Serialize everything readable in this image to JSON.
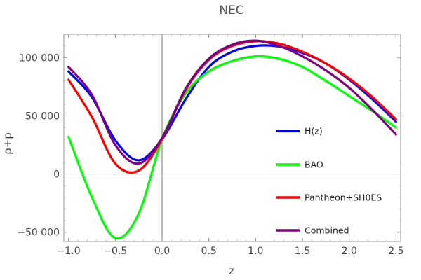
{
  "chart_data": {
    "type": "line",
    "title": "NEC",
    "xlabel": "z",
    "ylabel": "ρ+p",
    "xlim": [
      -1.05,
      2.55
    ],
    "ylim": [
      -58000,
      120000
    ],
    "xticks": [
      -1.0,
      -0.5,
      0.0,
      0.5,
      1.0,
      1.5,
      2.0,
      2.5
    ],
    "xtick_labels": [
      "−1.0",
      "−0.5",
      "0.0",
      "0.5",
      "1.0",
      "1.5",
      "2.0",
      "2.5"
    ],
    "yticks": [
      -50000,
      0,
      50000,
      100000
    ],
    "ytick_labels": [
      "−50 000",
      "0",
      "50 000",
      "100 000"
    ],
    "legend_position": "right",
    "series": [
      {
        "name": "H(z)",
        "color": "#0000ff",
        "x": [
          -1.0,
          -0.75,
          -0.5,
          -0.25,
          0.0,
          0.25,
          0.5,
          0.75,
          1.0,
          1.25,
          1.5,
          1.75,
          2.0,
          2.25,
          2.5
        ],
        "values": [
          88000,
          66000,
          29000,
          11800,
          30000,
          64000,
          92000,
          105000,
          110000,
          109500,
          104000,
          95000,
          81000,
          64000,
          45000
        ]
      },
      {
        "name": "BAO",
        "color": "#00ff00",
        "x": [
          -1.0,
          -0.75,
          -0.5,
          -0.25,
          0.0,
          0.25,
          0.5,
          0.75,
          1.0,
          1.25,
          1.5,
          1.75,
          2.0,
          2.25,
          2.5
        ],
        "values": [
          32000,
          -20000,
          -55000,
          -34000,
          30000,
          69000,
          88000,
          97000,
          101000,
          99000,
          92000,
          80000,
          67000,
          54000,
          40000
        ]
      },
      {
        "name": "Pantheon+SH0ES",
        "color": "#ff0000",
        "x": [
          -1.0,
          -0.75,
          -0.5,
          -0.25,
          0.0,
          0.25,
          0.5,
          0.75,
          1.0,
          1.25,
          1.5,
          1.75,
          2.0,
          2.25,
          2.5
        ],
        "values": [
          81000,
          49000,
          9000,
          3000,
          30000,
          72000,
          98000,
          110000,
          114000,
          112000,
          105000,
          95000,
          82000,
          66000,
          47000
        ]
      },
      {
        "name": "Combined",
        "color": "#800080",
        "x": [
          -1.0,
          -0.75,
          -0.5,
          -0.25,
          0.0,
          0.25,
          0.5,
          0.75,
          1.0,
          1.25,
          1.5,
          1.75,
          2.0,
          2.25,
          2.5
        ],
        "values": [
          92000,
          68000,
          25000,
          9000,
          31000,
          73000,
          99000,
          111000,
          114500,
          110000,
          101000,
          89000,
          74000,
          55000,
          34000
        ]
      }
    ]
  }
}
